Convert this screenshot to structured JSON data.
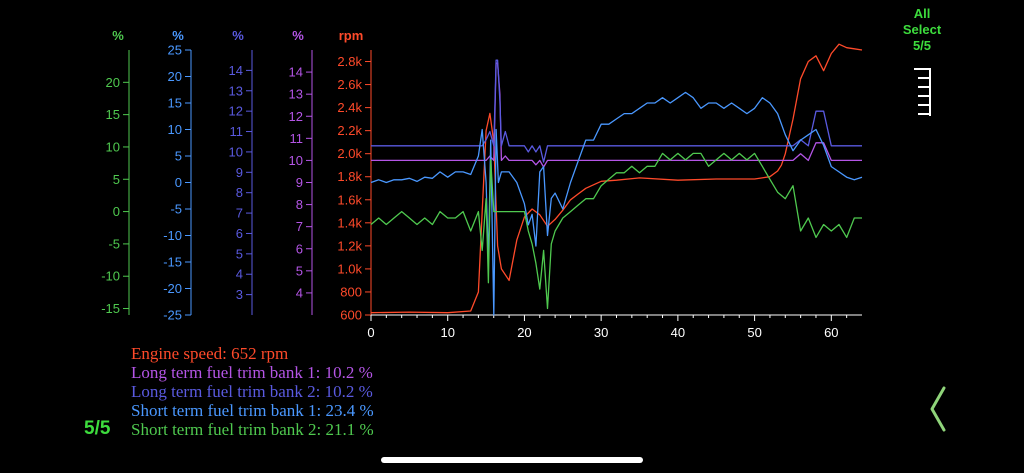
{
  "select_label": "All",
  "select_label2": "Select",
  "select_count": "5/5",
  "page_indicator": "5/5",
  "icons": {
    "ruler": "ruler-icon",
    "back": "chevron-left-icon"
  },
  "colors": {
    "engine_speed": "#ff4a2a",
    "ltft1": "#b455e6",
    "ltft2": "#5a5ae0",
    "stft1": "#4a98ff",
    "stft2": "#4fc94f",
    "accent": "#3ddc3d",
    "back": "#8fd47a"
  },
  "legend": [
    {
      "text": "Engine speed: 652 rpm",
      "color": "#ff4a2a"
    },
    {
      "text": "Long term fuel trim bank 1: 10.2 %",
      "color": "#b455e6"
    },
    {
      "text": "Long term fuel trim bank 2: 10.2 %",
      "color": "#5a5ae0"
    },
    {
      "text": "Short term fuel trim bank 1: 23.4 %",
      "color": "#4a98ff"
    },
    {
      "text": "Short term fuel trim bank 2: 21.1 %",
      "color": "#4fc94f"
    }
  ],
  "chart_data": {
    "type": "line",
    "xlim": [
      0,
      64
    ],
    "xticks": [
      0,
      10,
      20,
      30,
      40,
      50,
      60
    ],
    "grid": false,
    "axes": [
      {
        "id": "stft2",
        "unit": "%",
        "color": "#4fc94f",
        "ylim": [
          -16,
          25
        ],
        "ticks": [
          -15,
          -10,
          -5,
          0,
          5,
          10,
          15,
          20
        ],
        "tick_labels": [
          "-15",
          "-10",
          "-5",
          "0",
          "5",
          "10",
          "15",
          "20"
        ]
      },
      {
        "id": "stft1",
        "unit": "%",
        "color": "#4a98ff",
        "ylim": [
          -25,
          25
        ],
        "ticks": [
          -25,
          -20,
          -15,
          -10,
          -5,
          0,
          5,
          10,
          15,
          20,
          25
        ],
        "tick_labels": [
          "-25",
          "-20",
          "-15",
          "-10",
          "-5",
          "0",
          "5",
          "10",
          "15",
          "20",
          "25"
        ]
      },
      {
        "id": "ltft2",
        "unit": "%",
        "color": "#5a5ae0",
        "ylim": [
          2,
          15
        ],
        "ticks": [
          3,
          4,
          5,
          6,
          7,
          8,
          9,
          10,
          11,
          12,
          13,
          14
        ],
        "tick_labels": [
          "3",
          "4",
          "5",
          "6",
          "7",
          "8",
          "9",
          "10",
          "11",
          "12",
          "13",
          "14"
        ]
      },
      {
        "id": "ltft1",
        "unit": "%",
        "color": "#b455e6",
        "ylim": [
          3,
          15
        ],
        "ticks": [
          4,
          5,
          6,
          7,
          8,
          9,
          10,
          11,
          12,
          13,
          14
        ],
        "tick_labels": [
          "4",
          "5",
          "6",
          "7",
          "8",
          "9",
          "10",
          "11",
          "12",
          "13",
          "14"
        ]
      },
      {
        "id": "rpm",
        "unit": "rpm",
        "color": "#ff4a2a",
        "ylim": [
          600,
          2900
        ],
        "ticks": [
          600,
          800,
          1000,
          1200,
          1400,
          1600,
          1800,
          2000,
          2200,
          2400,
          2600,
          2800
        ],
        "tick_labels": [
          "600",
          "800",
          "1.0k",
          "1.2k",
          "1.4k",
          "1.6k",
          "1.8k",
          "2.0k",
          "2.2k",
          "2.4k",
          "2.6k",
          "2.8k"
        ]
      }
    ],
    "series": [
      {
        "axis": "rpm",
        "color": "#ff4a2a",
        "x": [
          0,
          5,
          10,
          13,
          14,
          14.5,
          15,
          15.5,
          16,
          16.5,
          17,
          18,
          19,
          20,
          21,
          22,
          23,
          24,
          25,
          26,
          27,
          28,
          30,
          32,
          35,
          40,
          45,
          50,
          52,
          53,
          53.5,
          54,
          55,
          56,
          57,
          58,
          59,
          60,
          61,
          62,
          63,
          64
        ],
        "y": [
          620,
          625,
          620,
          635,
          800,
          1500,
          2200,
          2350,
          2100,
          1200,
          1000,
          900,
          1250,
          1450,
          1520,
          1470,
          1370,
          1430,
          1510,
          1600,
          1650,
          1700,
          1760,
          1770,
          1790,
          1770,
          1780,
          1780,
          1800,
          1850,
          1900,
          2000,
          2300,
          2650,
          2800,
          2850,
          2720,
          2870,
          2950,
          2920,
          2910,
          2900
        ]
      },
      {
        "axis": "ltft1",
        "color": "#b455e6",
        "x": [
          0,
          14.5,
          15,
          15.5,
          16,
          16.3,
          16.5,
          16.8,
          17,
          17.5,
          18,
          20,
          21,
          21.5,
          22,
          22.5,
          23,
          24,
          25,
          26,
          27,
          28,
          30,
          55,
          56,
          57,
          58,
          59,
          60,
          64
        ],
        "y": [
          10,
          10,
          10,
          10.2,
          10,
          14.4,
          14.4,
          13,
          10,
          10.2,
          10,
          10,
          10,
          9.8,
          10,
          9.7,
          10,
          10,
          10,
          10,
          10,
          10,
          10,
          10,
          10.3,
          10,
          10.8,
          10.8,
          10,
          10
        ]
      },
      {
        "axis": "ltft2",
        "color": "#5a5ae0",
        "x": [
          0,
          14.5,
          15,
          15.5,
          16,
          16.3,
          16.5,
          16.8,
          17,
          17.5,
          18,
          20,
          20.5,
          21,
          21.5,
          22,
          22.5,
          23,
          24,
          25,
          26,
          27,
          28,
          30,
          55,
          56,
          57,
          58,
          59,
          60,
          64
        ],
        "y": [
          10.3,
          10.3,
          10.6,
          11,
          10.3,
          14.5,
          14.5,
          12.5,
          10.3,
          11,
          10.3,
          10.3,
          10,
          10.3,
          10,
          10.3,
          9.5,
          10.3,
          10.3,
          10.3,
          10.3,
          10.3,
          10.3,
          10.3,
          10.3,
          10.6,
          10.3,
          12,
          12,
          10.3,
          10.3
        ]
      },
      {
        "axis": "stft1",
        "color": "#4a98ff",
        "x": [
          0,
          1,
          2,
          3,
          4,
          5,
          6,
          7,
          8,
          9,
          10,
          11,
          12,
          13,
          14,
          14.5,
          15,
          15.3,
          15.6,
          16,
          16.3,
          16.6,
          17,
          18,
          19,
          20,
          20.5,
          21,
          21.5,
          22,
          22.5,
          23,
          23.5,
          24,
          25,
          26,
          27,
          28,
          29,
          30,
          31,
          32,
          33,
          34,
          35,
          36,
          37,
          38,
          39,
          40,
          41,
          42,
          43,
          44,
          45,
          46,
          47,
          48,
          49,
          50,
          51,
          52,
          53,
          54,
          55,
          56,
          57,
          58,
          59,
          60,
          61,
          62,
          63,
          64
        ],
        "y": [
          0,
          0.5,
          0,
          0.5,
          0.5,
          0.8,
          0.2,
          1,
          0.8,
          2,
          1,
          2,
          2,
          1.5,
          5,
          10,
          0,
          -15,
          8,
          -25,
          10,
          0,
          2,
          2,
          0,
          -4,
          -8,
          -6,
          -12,
          2,
          3,
          -10,
          -3,
          -2,
          -5,
          0,
          4,
          8,
          8,
          11,
          11,
          12,
          13,
          13,
          14,
          15,
          15,
          16,
          15,
          16,
          17,
          16,
          14,
          15,
          15,
          14,
          15,
          14,
          13,
          14,
          16,
          15,
          13,
          9,
          6,
          8,
          9,
          10,
          7,
          3,
          2,
          1,
          0.5,
          1
        ]
      },
      {
        "axis": "stft2",
        "color": "#4fc94f",
        "x": [
          0,
          1,
          2,
          3,
          4,
          5,
          6,
          7,
          8,
          9,
          10,
          11,
          12,
          13,
          14,
          14.5,
          15,
          15.3,
          15.6,
          16,
          16.5,
          17,
          18,
          19,
          20,
          20.5,
          21,
          21.5,
          22,
          22.5,
          23,
          23.5,
          24,
          25,
          26,
          27,
          28,
          29,
          30,
          31,
          32,
          33,
          34,
          35,
          36,
          37,
          38,
          39,
          40,
          41,
          42,
          43,
          44,
          45,
          46,
          47,
          48,
          49,
          50,
          51,
          52,
          53,
          54,
          55,
          56,
          57,
          58,
          59,
          60,
          61,
          62,
          63,
          64
        ],
        "y": [
          -2,
          -1,
          -2,
          -1,
          0,
          -1,
          -2,
          -1,
          -2,
          0,
          -1,
          -1,
          0,
          -3,
          0,
          -6,
          2,
          -11,
          8,
          0,
          0,
          0,
          0,
          0,
          0,
          -3,
          -5,
          -8,
          -12,
          -6,
          -15,
          -5,
          -3,
          -1,
          0,
          1,
          2,
          2,
          4,
          5,
          6,
          6,
          7,
          6,
          7,
          7,
          9,
          8,
          9,
          8,
          9,
          9,
          7,
          8,
          9,
          8,
          9,
          8,
          9,
          7,
          5,
          3,
          2,
          4,
          -3,
          -1,
          -4,
          -2,
          -3,
          -2,
          -4,
          -1,
          -1
        ]
      }
    ]
  }
}
